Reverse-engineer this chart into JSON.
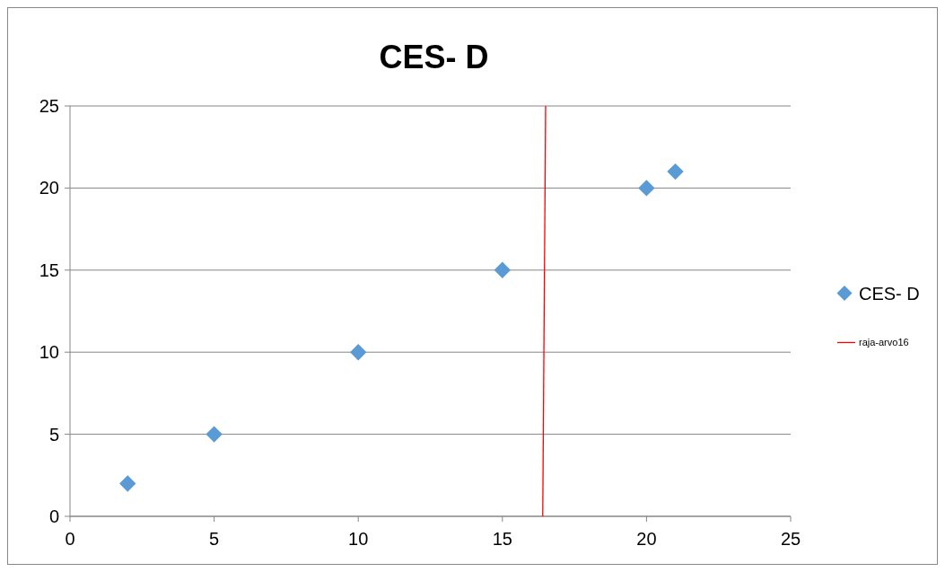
{
  "chart_data": {
    "type": "scatter",
    "title": "CES- D",
    "xlim": [
      0,
      25
    ],
    "xticks": [
      0,
      5,
      10,
      15,
      20,
      25
    ],
    "ylim": [
      0,
      25
    ],
    "yticks": [
      0,
      5,
      10,
      15,
      20,
      25
    ],
    "grid": "y",
    "legend": "right",
    "marker": "diamond",
    "series": [
      {
        "name": "CES- D",
        "color": "#5b9bd5",
        "x": [
          2,
          5,
          10,
          15,
          20,
          21
        ],
        "values": [
          2,
          5,
          10,
          15,
          20,
          21
        ]
      },
      {
        "name": "raja-arvo16",
        "type": "line",
        "color": "#ff0000",
        "marker": "none",
        "x": [
          16.4,
          16.5
        ],
        "values": [
          0,
          25
        ]
      }
    ]
  }
}
